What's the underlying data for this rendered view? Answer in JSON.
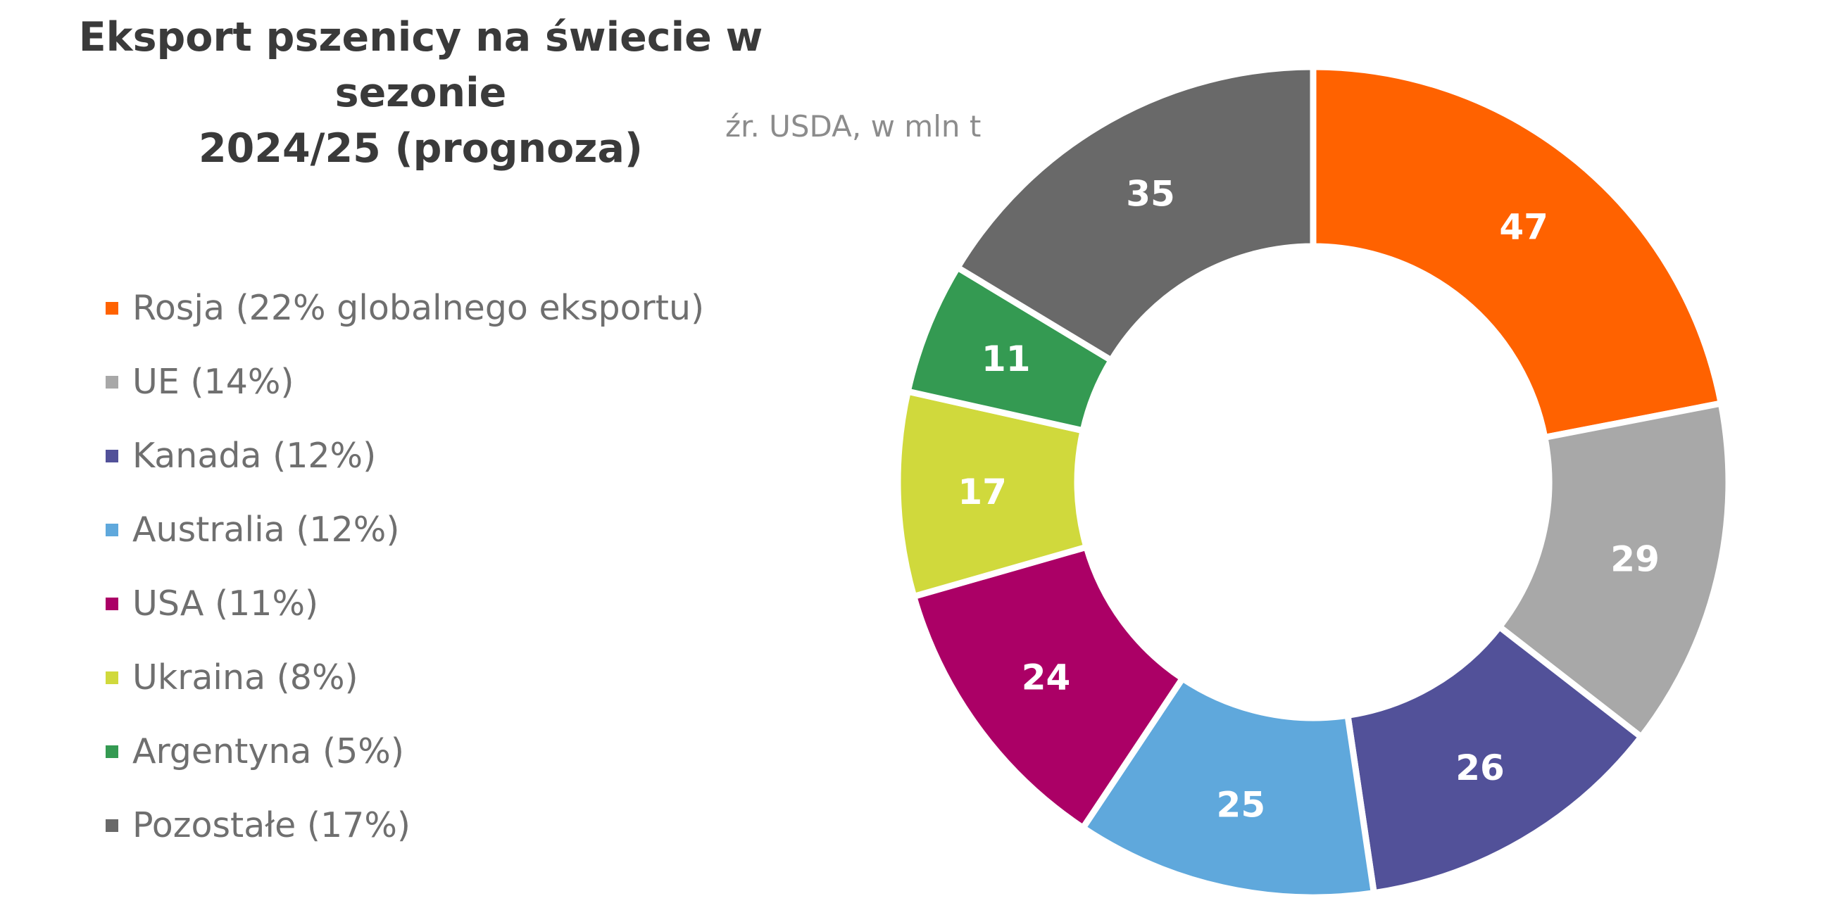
{
  "chart_data": {
    "type": "pie",
    "subtype": "donut",
    "title_line1": "Eksport pszenicy na świecie w sezonie",
    "title_line2": "2024/25 (prognoza)",
    "source_note": "źr. USDA, w mln t",
    "legend_position": "left",
    "categories": [
      "Rosja (22% globalnego eksportu)",
      "UE (14%)",
      "Kanada (12%)",
      "Australia (12%)",
      "USA (11%)",
      "Ukraina (8%)",
      "Argentyna (5%)",
      "Pozostałe (17%)"
    ],
    "values": [
      47,
      29,
      26,
      25,
      24,
      17,
      11,
      35
    ],
    "data_labels": [
      "47",
      "29",
      "26",
      "25",
      "24",
      "17",
      "11",
      "35"
    ],
    "colors": [
      "#ff6200",
      "#a8a8a8",
      "#525199",
      "#5fa8dc",
      "#ab0066",
      "#d0d93c",
      "#349a52",
      "#696969"
    ]
  }
}
